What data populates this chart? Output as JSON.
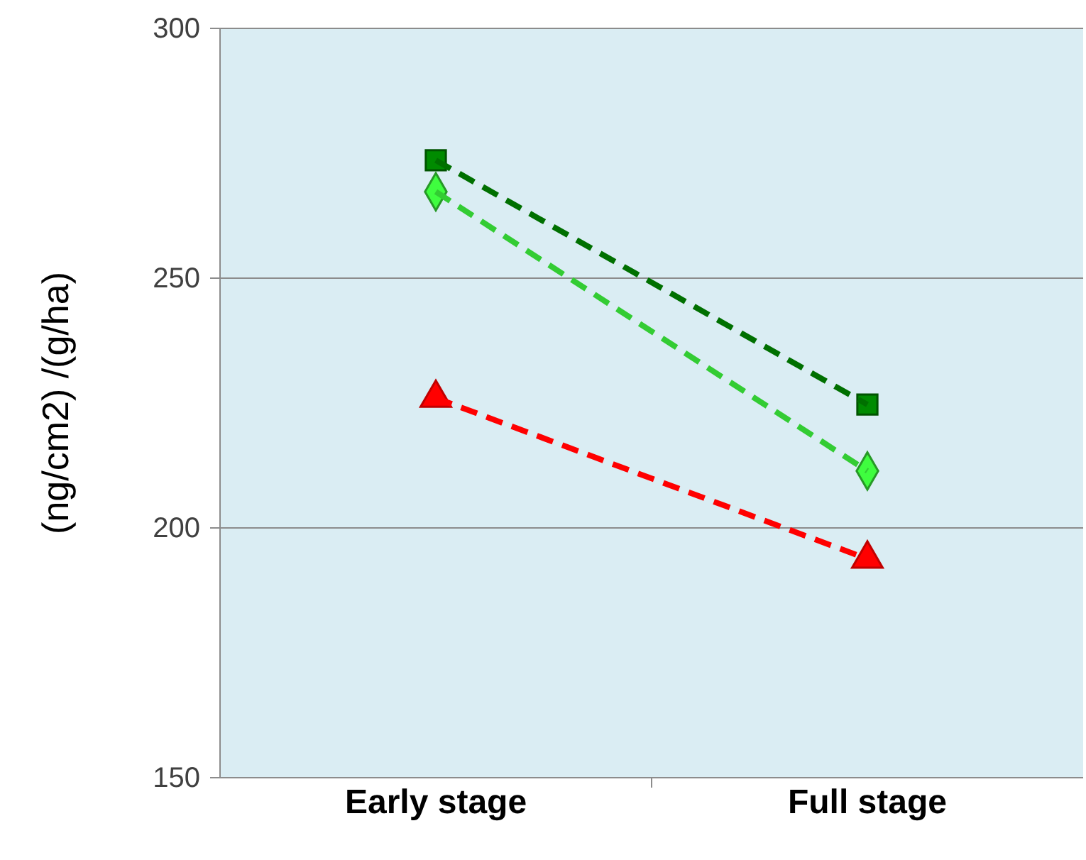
{
  "chart_data": {
    "type": "line",
    "ylabel": "(ng/cm2) /(g/ha)",
    "categories": [
      "Early stage",
      "Full stage"
    ],
    "series": [
      {
        "color": "#007000",
        "values": [
          273.6,
          224.7
        ],
        "marker": "square"
      },
      {
        "color": "#33cc33",
        "values": [
          267.3,
          211.4
        ],
        "marker": "diamond"
      },
      {
        "color": "#ff0000",
        "values": [
          226,
          193.8
        ],
        "marker": "triangle"
      }
    ],
    "ylim": [
      150,
      300
    ],
    "yticks": [
      150,
      200,
      250,
      300
    ],
    "grid": "y",
    "line_style": "dashed"
  }
}
